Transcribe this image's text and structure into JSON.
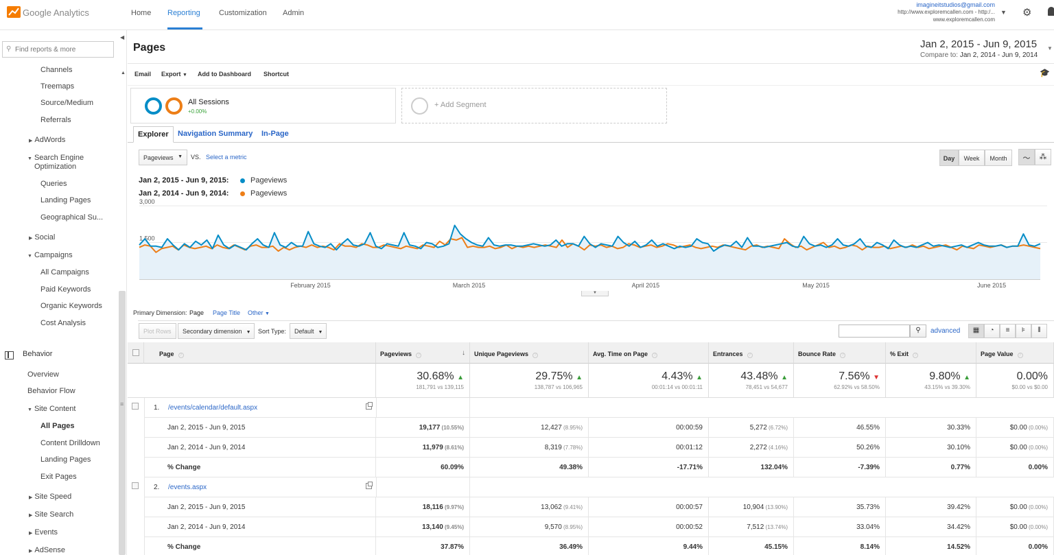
{
  "app": {
    "logo_text": "Google Analytics",
    "nav": [
      "Home",
      "Reporting",
      "Customization",
      "Admin"
    ],
    "account_email": "imagineitstudios@gmail.com",
    "account_url": "http://www.exploremcallen.com - http:/...",
    "account_site": "www.exploremcallen.com",
    "accent": "#2a7fd4"
  },
  "sidebar": {
    "search_placeholder": "Find reports & more",
    "items": [
      {
        "label": "Channels"
      },
      {
        "label": "Treemaps"
      },
      {
        "label": "Source/Medium"
      },
      {
        "label": "Referrals"
      },
      {
        "label": "AdWords"
      },
      {
        "label": "Search Engine"
      },
      {
        "label": "Optimization"
      },
      {
        "label": "Queries"
      },
      {
        "label": "Landing Pages"
      },
      {
        "label": "Geographical Su..."
      },
      {
        "label": "Social"
      },
      {
        "label": "Campaigns"
      },
      {
        "label": "All Campaigns"
      },
      {
        "label": "Paid Keywords"
      },
      {
        "label": "Organic Keywords"
      },
      {
        "label": "Cost Analysis"
      },
      {
        "label": "Behavior"
      },
      {
        "label": "Overview"
      },
      {
        "label": "Behavior Flow"
      },
      {
        "label": "Site Content"
      },
      {
        "label": "All Pages"
      },
      {
        "label": "Content Drilldown"
      },
      {
        "label": "Landing Pages"
      },
      {
        "label": "Exit Pages"
      },
      {
        "label": "Site Speed"
      },
      {
        "label": "Site Search"
      },
      {
        "label": "Events"
      },
      {
        "label": "AdSense"
      }
    ]
  },
  "header": {
    "title": "Pages",
    "date_range": "Jan 2, 2015 - Jun 9, 2015",
    "compare_label": "Compare to:",
    "compare_range": "Jan 2, 2014 - Jun 9, 2014",
    "actions": [
      "Email",
      "Export",
      "Add to Dashboard",
      "Shortcut"
    ]
  },
  "segments": {
    "all_sessions": "All Sessions",
    "all_sessions_pct": "+0.00%",
    "add_segment": "+ Add Segment"
  },
  "tabs": [
    "Explorer",
    "Navigation Summary",
    "In-Page"
  ],
  "chart_controls": {
    "metric": "Pageviews",
    "vs": "VS.",
    "select_metric": "Select a metric",
    "granularity": [
      "Day",
      "Week",
      "Month"
    ],
    "active_granularity": "Day"
  },
  "legend": [
    {
      "range": "Jan 2, 2015 - Jun 9, 2015:",
      "metric": "Pageviews",
      "color": "#058dc7"
    },
    {
      "range": "Jan 2, 2014 - Jun 9, 2014:",
      "metric": "Pageviews",
      "color": "#ed7e17"
    }
  ],
  "chart_data": {
    "type": "line",
    "ytick_labels": [
      "3,000",
      "1,500"
    ],
    "ylim": [
      0,
      3000
    ],
    "xtick_labels": [
      "February 2015",
      "March 2015",
      "April 2015",
      "May 2015",
      "June 2015"
    ],
    "series": [
      {
        "name": "Pageviews",
        "color": "#058dc7",
        "values": [
          1400,
          1650,
          1350,
          1350,
          1300,
          1650,
          1400,
          1200,
          1450,
          1300,
          1550,
          1400,
          1600,
          1250,
          1800,
          1400,
          1250,
          1400,
          1300,
          1200,
          1450,
          1650,
          1400,
          1300,
          1900,
          1400,
          1300,
          1500,
          1350,
          1350,
          1950,
          1450,
          1350,
          1300,
          1450,
          1200,
          1450,
          1650,
          1400,
          1350,
          1450,
          1900,
          1350,
          1250,
          1450,
          1400,
          1350,
          1900,
          1400,
          1350,
          1250,
          1500,
          1450,
          1300,
          1350,
          1450,
          2200,
          1850,
          1650,
          1500,
          1400,
          1350,
          1700,
          1400,
          1350,
          1400,
          1400,
          1350,
          1350,
          1400,
          1450,
          1400,
          1350,
          1400,
          1600,
          1350,
          1450,
          1450,
          1350,
          1750,
          1450,
          1300,
          1450,
          1400,
          1350,
          1750,
          1500,
          1350,
          1550,
          1300,
          1400,
          1600,
          1350,
          1450,
          1350,
          1250,
          1350,
          1300,
          1350,
          1650,
          1500,
          1450,
          1150,
          1300,
          1400,
          1350,
          1550,
          1300,
          1700,
          1350,
          1350,
          1300,
          1350,
          1400,
          1450,
          1500,
          1350,
          1300,
          1750,
          1450,
          1350,
          1400,
          1300,
          1400,
          1650,
          1400,
          1350,
          1450,
          1650,
          1350,
          1300,
          1500,
          1400,
          1250,
          1600,
          1400,
          1300,
          1350,
          1300,
          1400,
          1500,
          1350,
          1400,
          1350,
          1300,
          1350,
          1400,
          1300,
          1400,
          1500,
          1400,
          1350,
          1350,
          1400,
          1300,
          1350,
          1350,
          1850,
          1400,
          1350,
          1450
        ]
      },
      {
        "name": "Pageviews",
        "color": "#ed7e17",
        "values": [
          1300,
          1400,
          1350,
          1100,
          1250,
          1300,
          1350,
          1200,
          1400,
          1300,
          1250,
          1300,
          1350,
          1250,
          1400,
          1300,
          1250,
          1400,
          1300,
          1200,
          1350,
          1400,
          1300,
          1300,
          1350,
          1150,
          1300,
          1200,
          1300,
          1350,
          1300,
          1400,
          1300,
          1350,
          1300,
          1200,
          1450,
          1350,
          1350,
          1300,
          1450,
          1400,
          1300,
          1300,
          1400,
          1350,
          1300,
          1250,
          1350,
          1300,
          1250,
          1400,
          1350,
          1300,
          1550,
          1400,
          1650,
          1600,
          1700,
          1300,
          1350,
          1300,
          1300,
          1350,
          1250,
          1300,
          1400,
          1250,
          1350,
          1300,
          1350,
          1300,
          1350,
          1400,
          1350,
          1300,
          1600,
          1300,
          1450,
          1350,
          1200,
          1400,
          1350,
          1400,
          1300,
          1350,
          1250,
          1300,
          1450,
          1400,
          1300,
          1350,
          1400,
          1300,
          1350,
          1450,
          1400,
          1300,
          1350,
          1400,
          1300,
          1250,
          1300,
          1350,
          1300,
          1400,
          1350,
          1300,
          1250,
          1200,
          1350,
          1400,
          1300,
          1350,
          1300,
          1250,
          1650,
          1450,
          1300,
          1350,
          1200,
          1300,
          1400,
          1500,
          1300,
          1350,
          1250,
          1300,
          1400,
          1350,
          1200,
          1350,
          1300,
          1300,
          1350,
          1250,
          1300,
          1350,
          1300,
          1400,
          1300,
          1350,
          1250,
          1300,
          1350,
          1400,
          1300,
          1200,
          1350,
          1300,
          1250,
          1400,
          1350,
          1300,
          1350,
          1400,
          1300,
          1350,
          1350,
          1400,
          1350,
          1300,
          1250
        ]
      }
    ]
  },
  "table_controls": {
    "primary_dimension_label": "Primary Dimension:",
    "dimensions": [
      "Page",
      "Page Title",
      "Other"
    ],
    "plot_rows": "Plot Rows",
    "secondary_dimension": "Secondary dimension",
    "sort_type_label": "Sort Type:",
    "sort_type": "Default",
    "advanced": "advanced"
  },
  "table": {
    "columns": [
      "Page",
      "Pageviews",
      "Unique Pageviews",
      "Avg. Time on Page",
      "Entrances",
      "Bounce Rate",
      "% Exit",
      "Page Value"
    ],
    "totals": [
      {
        "value": "30.68%",
        "dir": "up",
        "sub": "181,791 vs 139,115"
      },
      {
        "value": "29.75%",
        "dir": "up",
        "sub": "138,787 vs 106,965"
      },
      {
        "value": "4.43%",
        "dir": "up",
        "sub": "00:01:14 vs 00:01:11"
      },
      {
        "value": "43.48%",
        "dir": "up",
        "sub": "78,451 vs 54,677"
      },
      {
        "value": "7.56%",
        "dir": "down",
        "sub": "62.92% vs 58.50%"
      },
      {
        "value": "9.80%",
        "dir": "up",
        "sub": "43.15% vs 39.30%"
      },
      {
        "value": "0.00%",
        "dir": "",
        "sub": "$0.00 vs $0.00"
      }
    ],
    "rows": [
      {
        "num": "1.",
        "page": "/events/calendar/default.aspx",
        "sub": [
          {
            "label": "Jan 2, 2015 - Jun 9, 2015",
            "bold": false,
            "vals": [
              [
                "19,177",
                "(10.55%)"
              ],
              [
                "12,427",
                "(8.95%)"
              ],
              [
                "00:00:59",
                ""
              ],
              [
                "5,272",
                "(6.72%)"
              ],
              [
                "46.55%",
                ""
              ],
              [
                "30.33%",
                ""
              ],
              [
                "$0.00",
                "(0.00%)"
              ]
            ]
          },
          {
            "label": "Jan 2, 2014 - Jun 9, 2014",
            "bold": false,
            "vals": [
              [
                "11,979",
                "(8.61%)"
              ],
              [
                "8,319",
                "(7.78%)"
              ],
              [
                "00:01:12",
                ""
              ],
              [
                "2,272",
                "(4.16%)"
              ],
              [
                "50.26%",
                ""
              ],
              [
                "30.10%",
                ""
              ],
              [
                "$0.00",
                "(0.00%)"
              ]
            ]
          },
          {
            "label": "% Change",
            "bold": true,
            "vals": [
              [
                "60.09%",
                ""
              ],
              [
                "49.38%",
                ""
              ],
              [
                "-17.71%",
                ""
              ],
              [
                "132.04%",
                ""
              ],
              [
                "-7.39%",
                ""
              ],
              [
                "0.77%",
                ""
              ],
              [
                "0.00%",
                ""
              ]
            ]
          }
        ]
      },
      {
        "num": "2.",
        "page": "/events.aspx",
        "sub": [
          {
            "label": "Jan 2, 2015 - Jun 9, 2015",
            "bold": false,
            "vals": [
              [
                "18,116",
                "(9.97%)"
              ],
              [
                "13,062",
                "(9.41%)"
              ],
              [
                "00:00:57",
                ""
              ],
              [
                "10,904",
                "(13.90%)"
              ],
              [
                "35.73%",
                ""
              ],
              [
                "39.42%",
                ""
              ],
              [
                "$0.00",
                "(0.00%)"
              ]
            ]
          },
          {
            "label": "Jan 2, 2014 - Jun 9, 2014",
            "bold": false,
            "vals": [
              [
                "13,140",
                "(9.45%)"
              ],
              [
                "9,570",
                "(8.95%)"
              ],
              [
                "00:00:52",
                ""
              ],
              [
                "7,512",
                "(13.74%)"
              ],
              [
                "33.04%",
                ""
              ],
              [
                "34.42%",
                ""
              ],
              [
                "$0.00",
                "(0.00%)"
              ]
            ]
          },
          {
            "label": "% Change",
            "bold": true,
            "vals": [
              [
                "37.87%",
                ""
              ],
              [
                "36.49%",
                ""
              ],
              [
                "9.44%",
                ""
              ],
              [
                "45.15%",
                ""
              ],
              [
                "8.14%",
                ""
              ],
              [
                "14.52%",
                ""
              ],
              [
                "0.00%",
                ""
              ]
            ]
          }
        ]
      }
    ]
  }
}
